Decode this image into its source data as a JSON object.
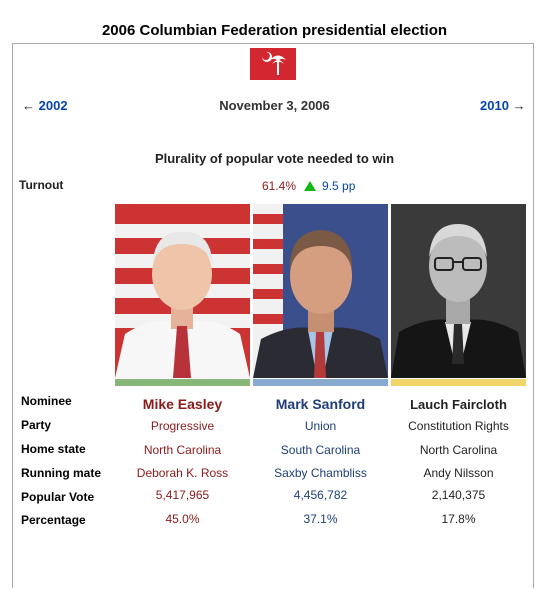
{
  "title": "2006 Columbian Federation presidential election",
  "nav": {
    "prev": "2002",
    "date": "November 3, 2006",
    "next": "2010"
  },
  "plurality_text": "Plurality of popular vote needed to win",
  "turnout": {
    "label": "Turnout",
    "value": "61.4%",
    "change": "9.5 pp"
  },
  "rows": {
    "nominee": "Nominee",
    "party": "Party",
    "home_state": "Home state",
    "running_mate": "Running mate",
    "popular_vote": "Popular Vote",
    "percentage": "Percentage"
  },
  "candidates": [
    {
      "name": "Mike Easley",
      "party": "Progressive",
      "home_state": "North Carolina",
      "running_mate": "Deborah K. Ross",
      "popular_vote": "5,417,965",
      "percentage": "45.0%",
      "color": "#86b778"
    },
    {
      "name": "Mark Sanford",
      "party": "Union",
      "home_state": "South Carolina",
      "running_mate": "Saxby Chambliss",
      "popular_vote": "4,456,782",
      "percentage": "37.1%",
      "color": "#87a9cd"
    },
    {
      "name": "Lauch Faircloth",
      "party": "Constitution Rights",
      "home_state": "North Carolina",
      "running_mate": "Andy Nilsson",
      "popular_vote": "2,140,375",
      "percentage": "17.8%",
      "color": "#f2d56a"
    }
  ],
  "colors": {
    "link": "#0645ad",
    "flag": "#d22730",
    "up_arrow": "#14b814"
  }
}
